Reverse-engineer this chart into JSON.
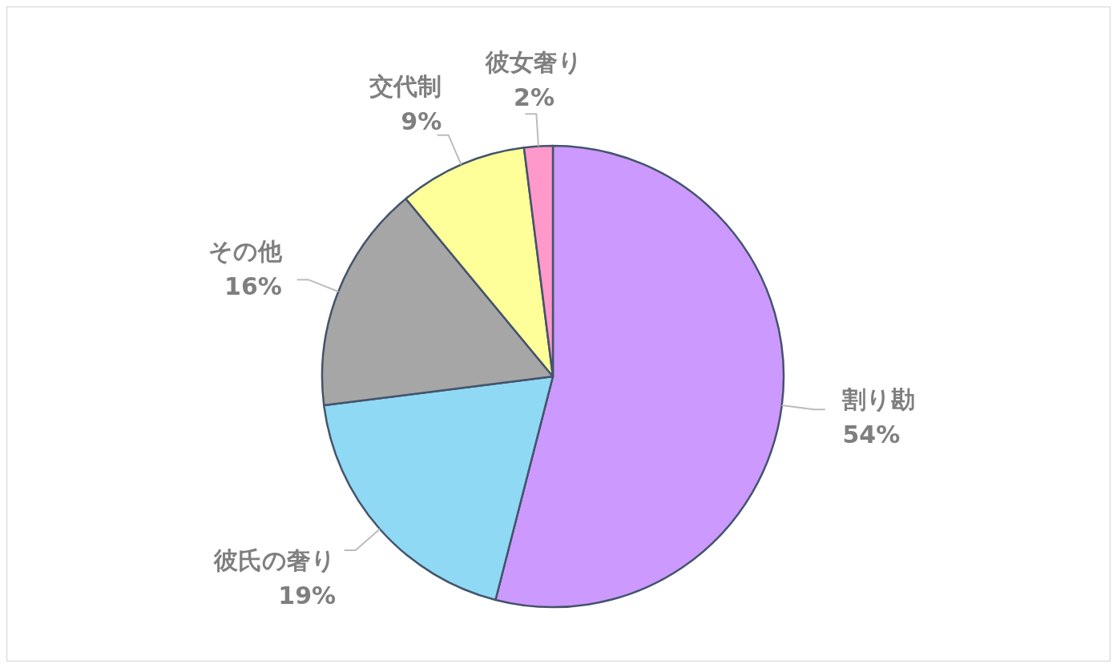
{
  "chart_data": {
    "type": "pie",
    "categories": [
      "割り勘",
      "彼氏の奢り",
      "その他",
      "交代制",
      "彼女奢り"
    ],
    "values": [
      54,
      19,
      16,
      9,
      2
    ],
    "value_labels": [
      "54%",
      "19%",
      "16%",
      "9%",
      "2%"
    ],
    "colors": [
      "#cc99ff",
      "#8fd9f5",
      "#a6a6a6",
      "#ffff99",
      "#ff99cc"
    ]
  }
}
